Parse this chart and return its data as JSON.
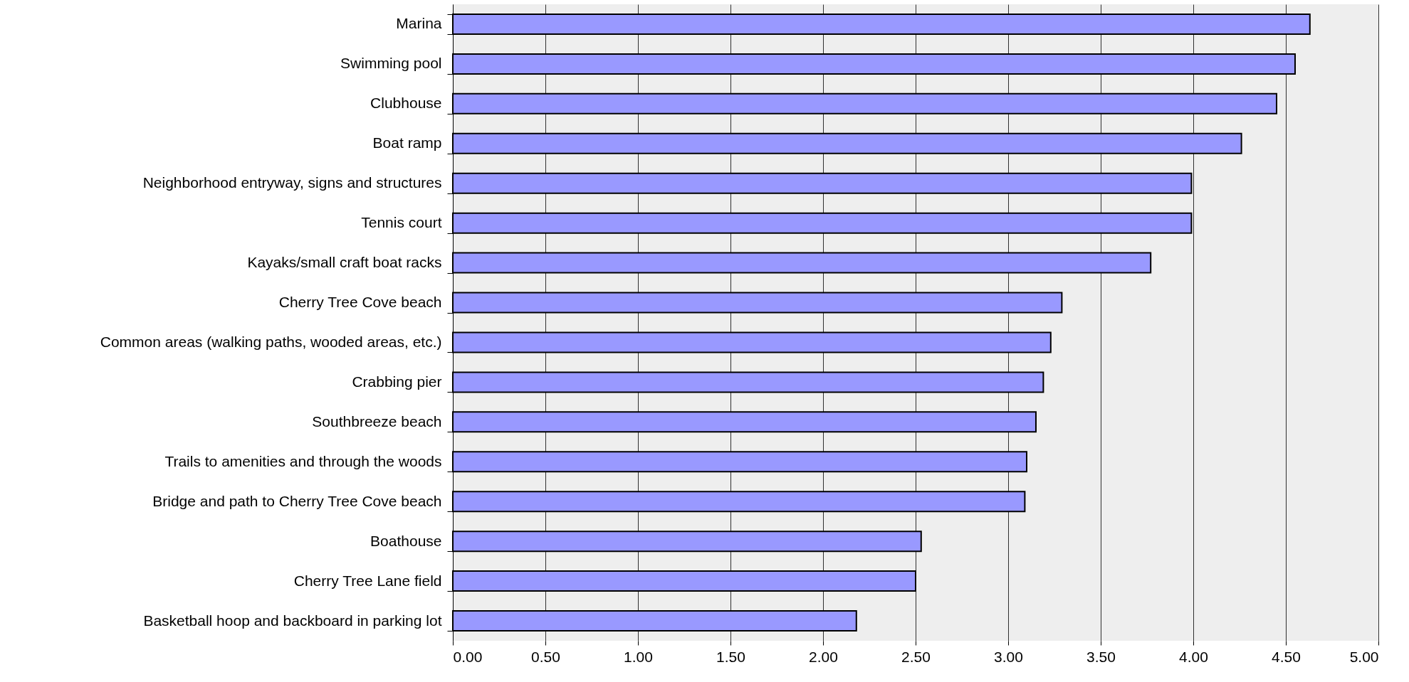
{
  "chart_data": {
    "type": "bar",
    "orientation": "horizontal",
    "categories": [
      "Marina",
      "Swimming pool",
      "Clubhouse",
      "Boat ramp",
      "Neighborhood entryway, signs and structures",
      "Tennis court",
      "Kayaks/small craft boat racks",
      "Cherry Tree Cove beach",
      "Common areas (walking paths, wooded areas, etc.)",
      "Crabbing pier",
      "Southbreeze beach",
      "Trails to amenities and through the woods",
      "Bridge and path to Cherry Tree Cove beach",
      "Boathouse",
      "Cherry Tree Lane field",
      "Basketball hoop and backboard in parking lot"
    ],
    "values": [
      4.63,
      4.55,
      4.45,
      4.26,
      3.99,
      3.99,
      3.77,
      3.29,
      3.23,
      3.19,
      3.15,
      3.1,
      3.09,
      2.53,
      2.5,
      2.18
    ],
    "color": "#9999ff",
    "xlim": [
      0,
      5
    ],
    "xticks": [
      {
        "value": 0,
        "label": "0.00"
      },
      {
        "value": 0.5,
        "label": "0.50"
      },
      {
        "value": 1,
        "label": "1.00"
      },
      {
        "value": 1.5,
        "label": "1.50"
      },
      {
        "value": 2,
        "label": "2.00"
      },
      {
        "value": 2.5,
        "label": "2.50"
      },
      {
        "value": 3,
        "label": "3.00"
      },
      {
        "value": 3.5,
        "label": "3.50"
      },
      {
        "value": 4,
        "label": "4.00"
      },
      {
        "value": 4.5,
        "label": "4.50"
      },
      {
        "value": 5,
        "label": "5.00"
      }
    ],
    "grid": "x"
  }
}
